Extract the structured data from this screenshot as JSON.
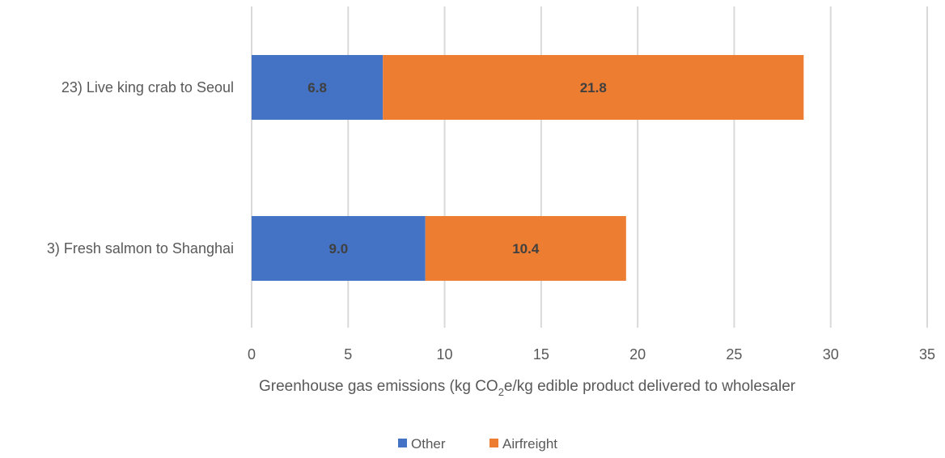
{
  "chart_data": {
    "type": "bar",
    "orientation": "horizontal",
    "stacked": true,
    "categories": [
      "23) Live king crab to Seoul",
      "3) Fresh salmon to Shanghai"
    ],
    "series": [
      {
        "name": "Other",
        "color": "#4472c4",
        "values": [
          6.8,
          9.0
        ]
      },
      {
        "name": "Airfreight",
        "color": "#ed7d31",
        "values": [
          21.8,
          10.4
        ]
      }
    ],
    "data_labels": [
      [
        "6.8",
        "9.0"
      ],
      [
        "21.8",
        "10.4"
      ]
    ],
    "xlabel": {
      "prefix": "Greenhouse gas emissions (kg CO",
      "subscript": "2",
      "suffix": "e/kg edible product delivered to wholesaler"
    },
    "xlim": [
      0,
      35
    ],
    "xticks": [
      0,
      5,
      10,
      15,
      20,
      25,
      30,
      35
    ],
    "grid": true,
    "legend_position": "bottom"
  }
}
